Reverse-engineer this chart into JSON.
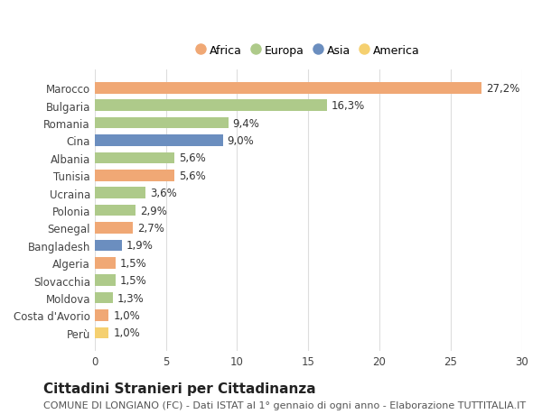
{
  "countries": [
    "Marocco",
    "Bulgaria",
    "Romania",
    "Cina",
    "Albania",
    "Tunisia",
    "Ucraina",
    "Polonia",
    "Senegal",
    "Bangladesh",
    "Algeria",
    "Slovacchia",
    "Moldova",
    "Costa d'Avorio",
    "Perù"
  ],
  "values": [
    27.2,
    16.3,
    9.4,
    9.0,
    5.6,
    5.6,
    3.6,
    2.9,
    2.7,
    1.9,
    1.5,
    1.5,
    1.3,
    1.0,
    1.0
  ],
  "labels": [
    "27,2%",
    "16,3%",
    "9,4%",
    "9,0%",
    "5,6%",
    "5,6%",
    "3,6%",
    "2,9%",
    "2,7%",
    "1,9%",
    "1,5%",
    "1,5%",
    "1,3%",
    "1,0%",
    "1,0%"
  ],
  "continents": [
    "Africa",
    "Europa",
    "Europa",
    "Asia",
    "Europa",
    "Africa",
    "Europa",
    "Europa",
    "Africa",
    "Asia",
    "Africa",
    "Europa",
    "Europa",
    "Africa",
    "America"
  ],
  "continent_colors": {
    "Africa": "#F0A875",
    "Europa": "#AECA8A",
    "Asia": "#6B8EBF",
    "America": "#F5D070"
  },
  "legend_order": [
    "Africa",
    "Europa",
    "Asia",
    "America"
  ],
  "title": "Cittadini Stranieri per Cittadinanza",
  "subtitle": "COMUNE DI LONGIANO (FC) - Dati ISTAT al 1° gennaio di ogni anno - Elaborazione TUTTITALIA.IT",
  "xlim": [
    0,
    30
  ],
  "xticks": [
    0,
    5,
    10,
    15,
    20,
    25,
    30
  ],
  "background_color": "#ffffff",
  "grid_color": "#dddddd",
  "bar_height": 0.65,
  "label_fontsize": 8.5,
  "title_fontsize": 11,
  "subtitle_fontsize": 8,
  "tick_fontsize": 8.5,
  "legend_fontsize": 9
}
